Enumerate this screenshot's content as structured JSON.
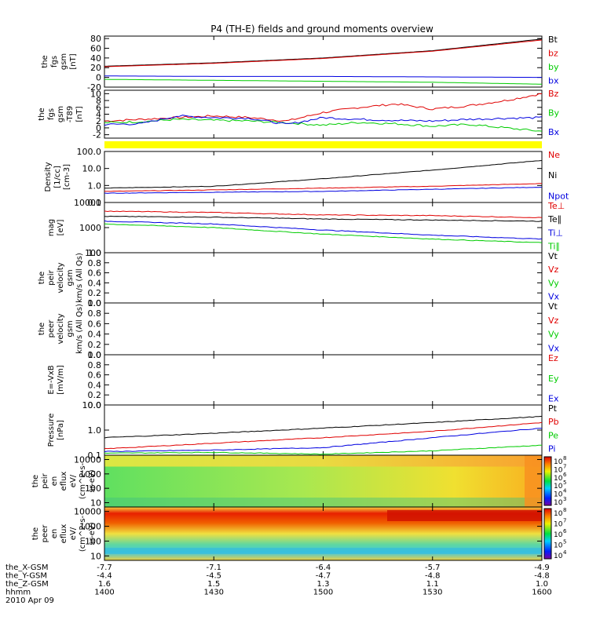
{
  "title": "P4 (TH-E) fields and ground moments overview",
  "colors": {
    "black": "#000000",
    "red": "#e00000",
    "green": "#00cc00",
    "blue": "#0000e0",
    "yellow": "#ffff00"
  },
  "colorbar_label_main": "10",
  "time_axis": {
    "ticks": [
      "1400",
      "1430",
      "1500",
      "1530",
      "1600"
    ],
    "start": 0,
    "end": 120
  },
  "ephemeris": {
    "rows": [
      {
        "name": "the_X-GSM",
        "values": [
          "-7.7",
          "-7.1",
          "-6.4",
          "-5.7",
          "-4.9"
        ]
      },
      {
        "name": "the_Y-GSM",
        "values": [
          "-4.4",
          "-4.5",
          "-4.7",
          "-4.8",
          "-4.8"
        ]
      },
      {
        "name": "the_Z-GSM",
        "values": [
          "1.6",
          "1.5",
          "1.3",
          "1.1",
          "1.0"
        ]
      },
      {
        "name": "hhmm",
        "values": [
          "1400",
          "1430",
          "1500",
          "1530",
          "1600"
        ]
      }
    ],
    "date": "2010 Apr 09"
  },
  "chart_data": [
    {
      "type": "line",
      "ylabel": [
        "the",
        "fgs",
        "gsm",
        "[nT]"
      ],
      "ylim": [
        -20,
        85
      ],
      "yticks": [
        {
          "v": -20,
          "t": "-20"
        },
        {
          "v": 0,
          "t": "0"
        },
        {
          "v": 20,
          "t": "20"
        },
        {
          "v": 40,
          "t": "40"
        },
        {
          "v": 60,
          "t": "60"
        },
        {
          "v": 80,
          "t": "80"
        }
      ],
      "legend": [
        {
          "text": "Bt",
          "color": "black"
        },
        {
          "text": "bz",
          "color": "red"
        },
        {
          "text": "by",
          "color": "green"
        },
        {
          "text": "bx",
          "color": "blue"
        }
      ],
      "series": [
        {
          "name": "Bt",
          "color": "black",
          "x": [
            0,
            30,
            60,
            90,
            120
          ],
          "y": [
            23,
            30,
            40,
            55,
            79
          ]
        },
        {
          "name": "bz",
          "color": "red",
          "x": [
            0,
            30,
            60,
            90,
            120
          ],
          "y": [
            22,
            29,
            39,
            54,
            77
          ]
        },
        {
          "name": "by",
          "color": "green",
          "x": [
            0,
            30,
            60,
            90,
            120
          ],
          "y": [
            -4,
            -6,
            -8,
            -10,
            -14
          ]
        },
        {
          "name": "bx",
          "color": "blue",
          "x": [
            0,
            30,
            60,
            90,
            120
          ],
          "y": [
            3,
            2,
            2,
            1,
            0
          ]
        }
      ]
    },
    {
      "type": "line",
      "ylabel": [
        "the",
        "fgs",
        "gsm",
        "-T89",
        "[nT]"
      ],
      "ylim": [
        -3,
        11
      ],
      "yticks": [
        {
          "v": -2,
          "t": "-2"
        },
        {
          "v": 0,
          "t": "0"
        },
        {
          "v": 2,
          "t": "2"
        },
        {
          "v": 4,
          "t": "4"
        },
        {
          "v": 6,
          "t": "6"
        },
        {
          "v": 8,
          "t": "8"
        },
        {
          "v": 10,
          "t": "10"
        }
      ],
      "legend": [
        {
          "text": "Bz",
          "color": "red"
        },
        {
          "text": "By",
          "color": "green"
        },
        {
          "text": "Bx",
          "color": "blue"
        }
      ],
      "series": [
        {
          "name": "Bz",
          "color": "red",
          "x": [
            0,
            10,
            20,
            30,
            40,
            50,
            60,
            70,
            80,
            90,
            100,
            110,
            120
          ],
          "y": [
            2,
            2.5,
            3,
            3.5,
            3,
            2,
            4.5,
            6,
            7,
            5.5,
            6.5,
            8,
            10
          ]
        },
        {
          "name": "By",
          "color": "green",
          "x": [
            0,
            10,
            20,
            30,
            40,
            50,
            60,
            70,
            80,
            90,
            100,
            110,
            120
          ],
          "y": [
            1.5,
            1.8,
            2.5,
            2.2,
            2,
            1.5,
            0.8,
            1.6,
            1.2,
            0.5,
            1,
            0,
            -1
          ]
        },
        {
          "name": "Bx",
          "color": "blue",
          "x": [
            0,
            10,
            20,
            30,
            40,
            50,
            60,
            70,
            80,
            90,
            100,
            110,
            120
          ],
          "y": [
            1,
            1.2,
            3.5,
            3,
            2.8,
            1,
            3,
            2.5,
            2.2,
            2,
            2.5,
            2.8,
            3
          ]
        }
      ]
    },
    {
      "type": "line",
      "scale": "log",
      "ylabel": [
        "Density",
        "[1/cc]",
        "[cm-3]"
      ],
      "ylim": [
        0.1,
        100
      ],
      "yticks": [
        {
          "v": 0.1,
          "t": "0.1"
        },
        {
          "v": 1,
          "t": "1.0"
        },
        {
          "v": 10,
          "t": "10.0"
        },
        {
          "v": 100,
          "t": "100.0"
        }
      ],
      "legend": [
        {
          "text": "Ne",
          "color": "red"
        },
        {
          "text": "Ni",
          "color": "black"
        },
        {
          "text": "Npot",
          "color": "blue"
        }
      ],
      "series": [
        {
          "name": "Ni",
          "color": "black",
          "x": [
            0,
            30,
            60,
            90,
            120
          ],
          "y": [
            0.7,
            0.9,
            2.5,
            8,
            30
          ]
        },
        {
          "name": "Ne",
          "color": "red",
          "x": [
            0,
            30,
            60,
            90,
            120
          ],
          "y": [
            0.45,
            0.55,
            0.7,
            0.9,
            1.3
          ]
        },
        {
          "name": "Npot",
          "color": "blue",
          "x": [
            0,
            30,
            60,
            90,
            120
          ],
          "y": [
            0.35,
            0.4,
            0.45,
            0.6,
            0.8
          ]
        }
      ]
    },
    {
      "type": "line",
      "scale": "log",
      "ylabel": [
        "mag",
        "[eV]"
      ],
      "ylim": [
        100,
        10000
      ],
      "yticks": [
        {
          "v": 100,
          "t": "100"
        },
        {
          "v": 1000,
          "t": "1000"
        },
        {
          "v": 10000,
          "t": "10000"
        }
      ],
      "legend": [
        {
          "text": "Te⊥",
          "color": "red"
        },
        {
          "text": "Te∥",
          "color": "black"
        },
        {
          "text": "Ti⊥",
          "color": "blue"
        },
        {
          "text": "Ti∥",
          "color": "green"
        }
      ],
      "series": [
        {
          "name": "Te⊥",
          "color": "red",
          "x": [
            0,
            30,
            60,
            90,
            120
          ],
          "y": [
            4500,
            4000,
            3200,
            3000,
            2500
          ]
        },
        {
          "name": "Te∥",
          "color": "black",
          "x": [
            0,
            30,
            60,
            90,
            120
          ],
          "y": [
            2800,
            2600,
            2200,
            2000,
            1800
          ]
        },
        {
          "name": "Ti⊥",
          "color": "blue",
          "x": [
            0,
            30,
            60,
            90,
            120
          ],
          "y": [
            1800,
            1400,
            800,
            500,
            350
          ]
        },
        {
          "name": "Ti∥",
          "color": "green",
          "x": [
            0,
            30,
            60,
            90,
            120
          ],
          "y": [
            1400,
            1000,
            550,
            350,
            250
          ]
        }
      ]
    },
    {
      "type": "line",
      "ylabel": [
        "the",
        "peir",
        "velocity",
        "gsm",
        "km/s (All Qs)"
      ],
      "ylim": [
        0,
        1
      ],
      "yticks": [
        {
          "v": 0,
          "t": "0.0"
        },
        {
          "v": 0.2,
          "t": "0.2"
        },
        {
          "v": 0.4,
          "t": "0.4"
        },
        {
          "v": 0.6,
          "t": "0.6"
        },
        {
          "v": 0.8,
          "t": "0.8"
        },
        {
          "v": 1,
          "t": "1.0"
        }
      ],
      "legend": [
        {
          "text": "Vt",
          "color": "black"
        },
        {
          "text": "Vz",
          "color": "red"
        },
        {
          "text": "Vy",
          "color": "green"
        },
        {
          "text": "Vx",
          "color": "blue"
        }
      ],
      "series": []
    },
    {
      "type": "line",
      "ylabel": [
        "the",
        "peer",
        "velocity",
        "gsm",
        "km/s (All Qs)"
      ],
      "ylim": [
        0,
        1
      ],
      "yticks": [
        {
          "v": 0,
          "t": "0.0"
        },
        {
          "v": 0.2,
          "t": "0.2"
        },
        {
          "v": 0.4,
          "t": "0.4"
        },
        {
          "v": 0.6,
          "t": "0.6"
        },
        {
          "v": 0.8,
          "t": "0.8"
        },
        {
          "v": 1,
          "t": "1.0"
        }
      ],
      "legend": [
        {
          "text": "Vt",
          "color": "black"
        },
        {
          "text": "Vz",
          "color": "red"
        },
        {
          "text": "Vy",
          "color": "green"
        },
        {
          "text": "Vx",
          "color": "blue"
        }
      ],
      "series": []
    },
    {
      "type": "line",
      "ylabel": [
        "E=-VxB",
        "[mV/m]"
      ],
      "ylim": [
        0,
        1
      ],
      "yticks": [
        {
          "v": 0,
          "t": "0.0"
        },
        {
          "v": 0.2,
          "t": "0.2"
        },
        {
          "v": 0.4,
          "t": "0.4"
        },
        {
          "v": 0.6,
          "t": "0.6"
        },
        {
          "v": 0.8,
          "t": "0.8"
        },
        {
          "v": 1,
          "t": "1.0"
        }
      ],
      "legend": [
        {
          "text": "Ez",
          "color": "red"
        },
        {
          "text": "Ey",
          "color": "green"
        },
        {
          "text": "Ex",
          "color": "blue"
        }
      ],
      "series": []
    },
    {
      "type": "line",
      "scale": "log",
      "ylabel": [
        "Pressure",
        "[nPa]"
      ],
      "ylim": [
        0.1,
        10
      ],
      "yticks": [
        {
          "v": 0.1,
          "t": "0.1"
        },
        {
          "v": 1,
          "t": "1.0"
        },
        {
          "v": 10,
          "t": "10.0"
        }
      ],
      "legend": [
        {
          "text": "Pt",
          "color": "black"
        },
        {
          "text": "Pb",
          "color": "red"
        },
        {
          "text": "Pe",
          "color": "green"
        },
        {
          "text": "Pi",
          "color": "blue"
        }
      ],
      "series": [
        {
          "name": "Pt",
          "color": "black",
          "x": [
            0,
            30,
            60,
            90,
            120
          ],
          "y": [
            0.5,
            0.75,
            1.2,
            2,
            3.5
          ]
        },
        {
          "name": "Pb",
          "color": "red",
          "x": [
            0,
            30,
            60,
            90,
            120
          ],
          "y": [
            0.18,
            0.3,
            0.5,
            0.9,
            2
          ]
        },
        {
          "name": "Pe",
          "color": "green",
          "x": [
            0,
            30,
            60,
            90,
            120
          ],
          "y": [
            0.12,
            0.13,
            0.11,
            0.15,
            0.25
          ]
        },
        {
          "name": "Pi",
          "color": "blue",
          "x": [
            0,
            30,
            60,
            90,
            120
          ],
          "y": [
            0.14,
            0.16,
            0.2,
            0.5,
            1.2
          ]
        }
      ]
    },
    {
      "type": "heatmap",
      "ylabel": [
        "the",
        "peir",
        "en",
        "eflux",
        "eV/",
        "(cm^2-s-",
        "sr-eV)"
      ],
      "ylim": [
        5,
        20000
      ],
      "yticks": [
        {
          "v": 10,
          "t": "10"
        },
        {
          "v": 100,
          "t": "100"
        },
        {
          "v": 1000,
          "t": "1000"
        },
        {
          "v": 10000,
          "t": "10000"
        }
      ],
      "colorbar_exponents": [
        "8",
        "7",
        "6",
        "5",
        "4",
        "3"
      ],
      "colorbar_range": [
        3,
        8
      ]
    },
    {
      "type": "heatmap",
      "ylabel": [
        "the",
        "peer",
        "en",
        "eflux",
        "eV/",
        "(cm^2-s-",
        "sr-eV)"
      ],
      "ylim": [
        5,
        20000
      ],
      "yticks": [
        {
          "v": 10,
          "t": "10"
        },
        {
          "v": 100,
          "t": "100"
        },
        {
          "v": 1000,
          "t": "1000"
        },
        {
          "v": 10000,
          "t": "10000"
        }
      ],
      "colorbar_exponents": [
        "8",
        "7",
        "6",
        "5",
        "4"
      ],
      "colorbar_range": [
        4,
        8
      ]
    }
  ]
}
